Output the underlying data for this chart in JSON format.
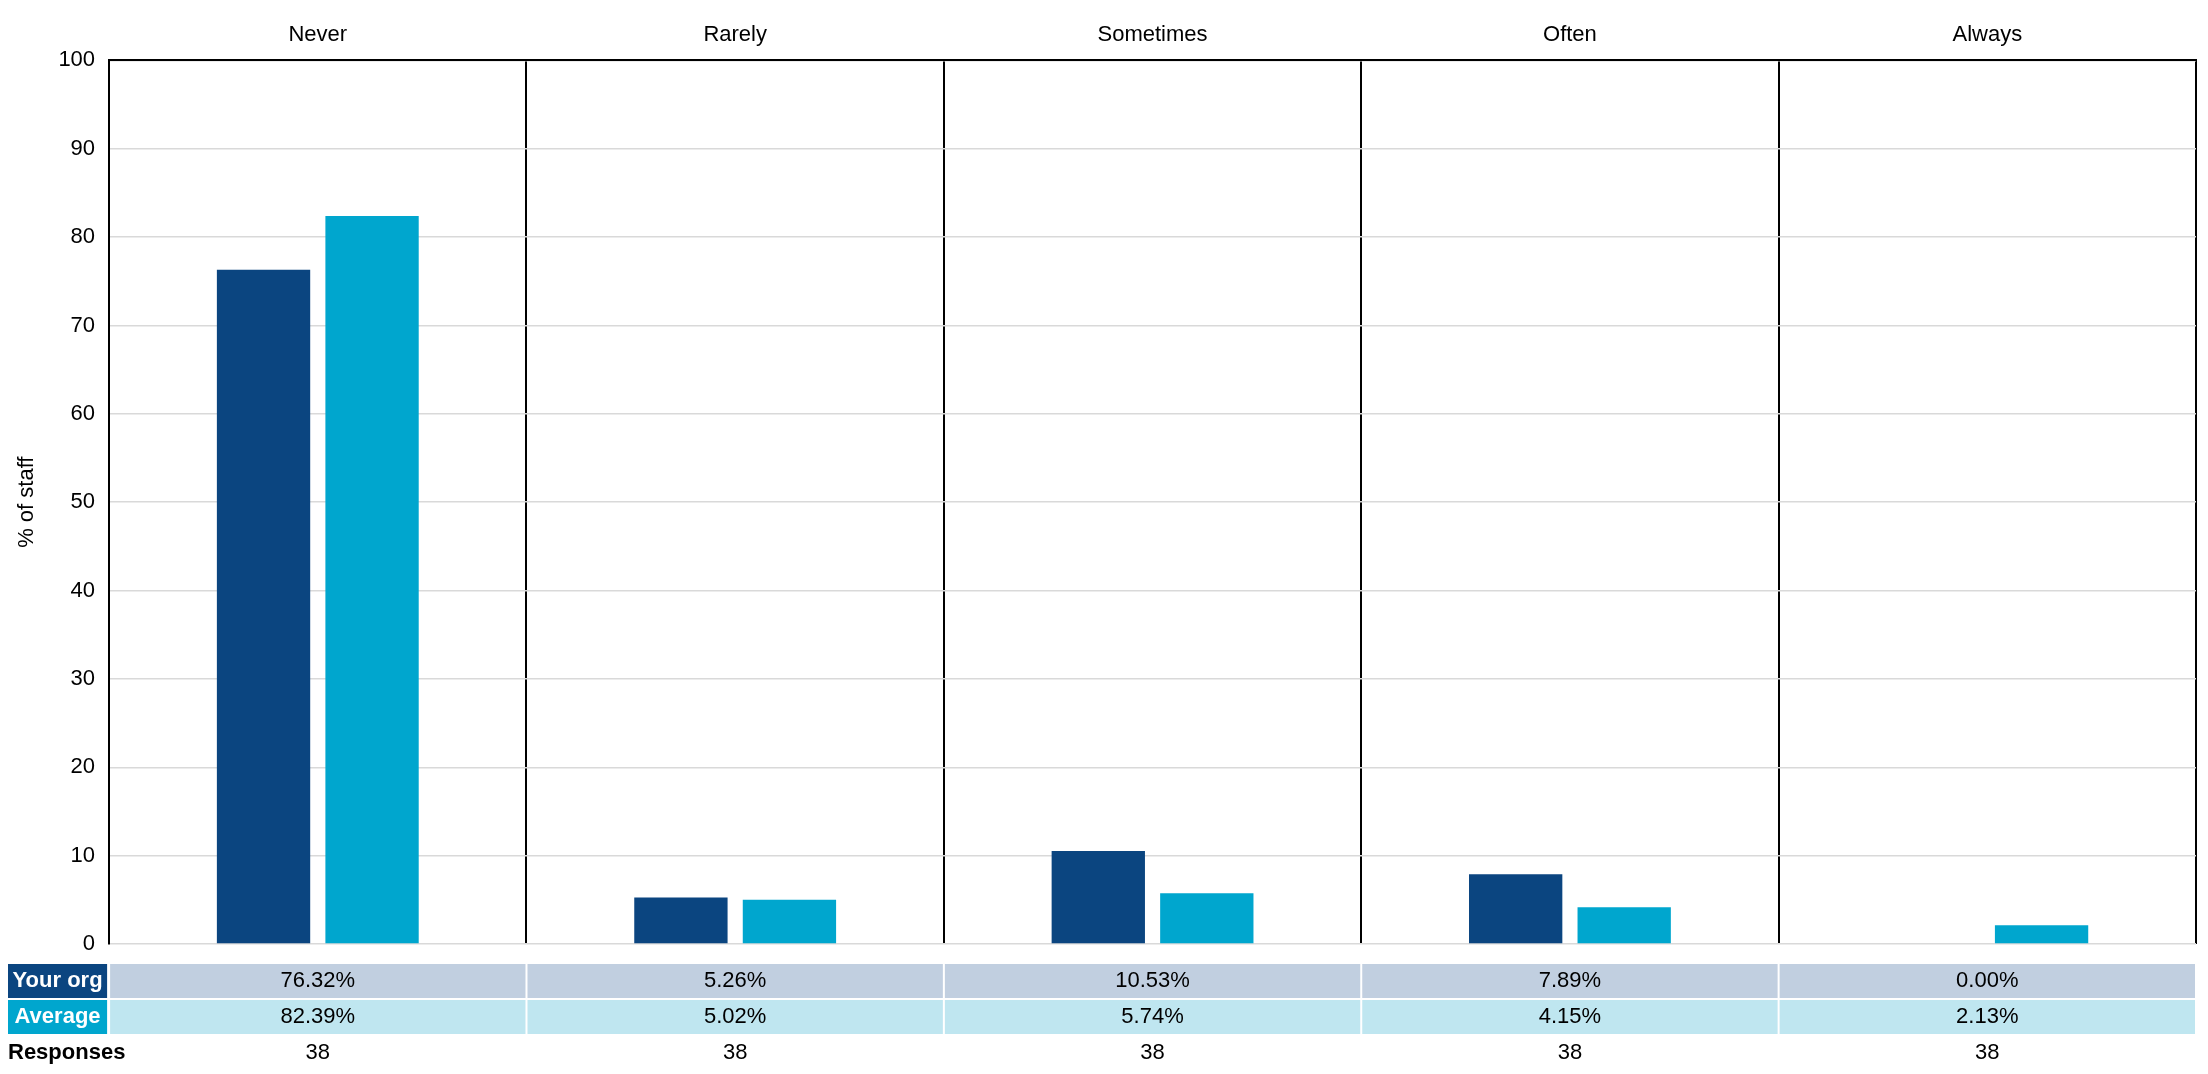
{
  "chart_data": {
    "type": "bar",
    "ylabel": "% of staff",
    "categories": [
      "Never",
      "Rarely",
      "Sometimes",
      "Often",
      "Always"
    ],
    "series": [
      {
        "name": "Your org",
        "color": "#0b4580",
        "values": [
          76.32,
          5.26,
          10.53,
          7.89,
          0.0
        ],
        "value_labels": [
          "76.32%",
          "5.26%",
          "10.53%",
          "7.89%",
          "0.00%"
        ]
      },
      {
        "name": "Average",
        "color": "#00a6ce",
        "values": [
          82.39,
          5.02,
          5.74,
          4.15,
          2.13
        ],
        "value_labels": [
          "82.39%",
          "5.02%",
          "5.74%",
          "4.15%",
          "2.13%"
        ]
      }
    ],
    "ylim": [
      0,
      100
    ],
    "yticks": [
      0,
      10,
      20,
      30,
      40,
      50,
      60,
      70,
      80,
      90,
      100
    ],
    "grid": true,
    "legend": "bottom",
    "annotations": [
      "Responses",
      "38",
      "38",
      "38",
      "38",
      "38"
    ]
  }
}
